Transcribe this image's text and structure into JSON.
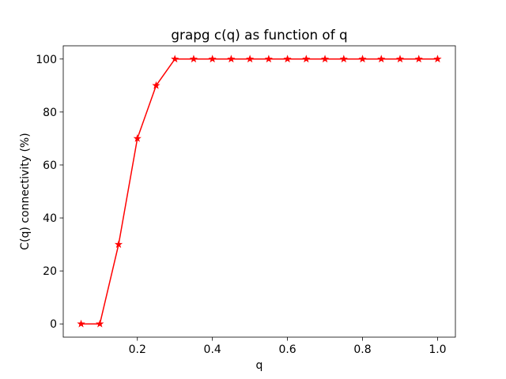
{
  "chart_data": {
    "type": "line",
    "title": "grapg c(q) as function of q",
    "xlabel": "q",
    "ylabel": "C(q) connectivity (%)",
    "xlim": [
      0.0025,
      1.0475
    ],
    "ylim": [
      -5,
      105
    ],
    "xticks": [
      0.2,
      0.4,
      0.6,
      0.8,
      1.0
    ],
    "xtick_labels": [
      "0.2",
      "0.4",
      "0.6",
      "0.8",
      "1.0"
    ],
    "yticks": [
      0,
      20,
      40,
      60,
      80,
      100
    ],
    "ytick_labels": [
      "0",
      "20",
      "40",
      "60",
      "80",
      "100"
    ],
    "grid": false,
    "legend": "none",
    "series": [
      {
        "color": "#ff0000",
        "marker": "star",
        "x": [
          0.05,
          0.1,
          0.15,
          0.2,
          0.25,
          0.3,
          0.35,
          0.4,
          0.45,
          0.5,
          0.55,
          0.6,
          0.65,
          0.7,
          0.75,
          0.8,
          0.85,
          0.9,
          0.95,
          1.0
        ],
        "y": [
          0,
          0,
          30,
          70,
          90,
          100,
          100,
          100,
          100,
          100,
          100,
          100,
          100,
          100,
          100,
          100,
          100,
          100,
          100,
          100
        ]
      }
    ]
  }
}
